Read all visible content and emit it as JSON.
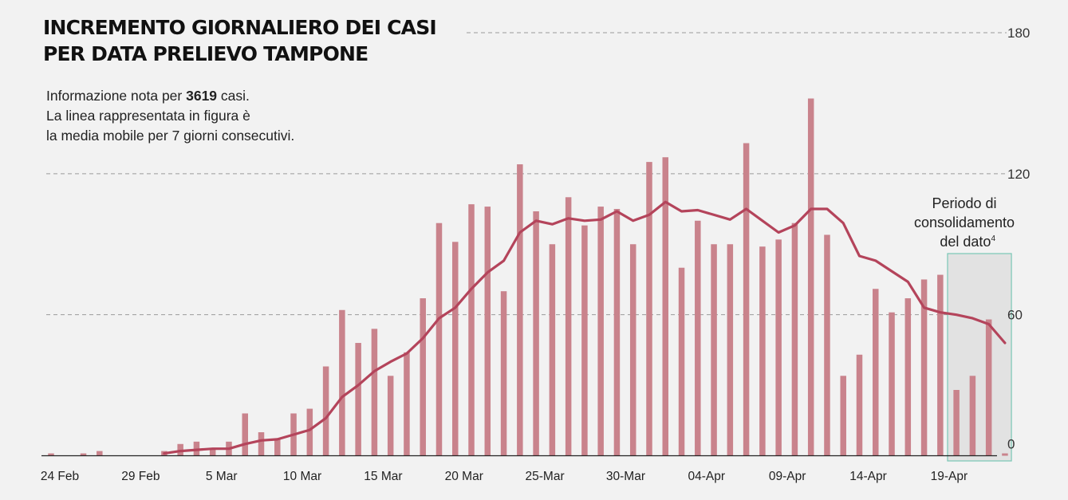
{
  "title_lines": [
    "INCREMENTO GIORNALIERO DEI CASI",
    "PER DATA PRELIEVO TAMPONE"
  ],
  "subtitle": {
    "line1_prefix": "Informazione nota per ",
    "line1_bold": "3619",
    "line1_suffix": " casi.",
    "line2": "La linea rappresentata in figura è",
    "line3": "la media mobile per 7 giorni consecutivi."
  },
  "annotation": {
    "lines": [
      "Periodo di",
      "consolidamento",
      "del dato"
    ],
    "superscript": "4"
  },
  "colors": {
    "bar": "#c9838c",
    "line": "#b4445b",
    "highlight_fill": "#e2e2e2",
    "highlight_stroke": "#79c7b6",
    "grid": "#9a9a9a",
    "background": "#f2f2f2"
  },
  "chart_data": {
    "type": "bar",
    "start_date": "24 Feb",
    "x_tick_labels": [
      "24 Feb",
      "29 Feb",
      "5 Mar",
      "10 Mar",
      "15 Mar",
      "20 Mar",
      "25-Mar",
      "30-Mar",
      "04-Apr",
      "09-Apr",
      "14-Apr",
      "19-Apr"
    ],
    "y_ticks": [
      0,
      60,
      120,
      180
    ],
    "ylim": [
      0,
      180
    ],
    "grid": true,
    "values": [
      1,
      0,
      1,
      2,
      0,
      0,
      0,
      2,
      5,
      6,
      3,
      6,
      18,
      10,
      7,
      18,
      20,
      38,
      62,
      48,
      54,
      34,
      44,
      67,
      99,
      91,
      107,
      106,
      70,
      124,
      104,
      90,
      110,
      98,
      106,
      105,
      90,
      125,
      127,
      80,
      100,
      90,
      90,
      133,
      89,
      92,
      99,
      152,
      94,
      34,
      43,
      71,
      61,
      67,
      75,
      77,
      28,
      34,
      58,
      1
    ],
    "moving_average": [
      null,
      null,
      null,
      null,
      null,
      null,
      null,
      1,
      2,
      2.5,
      3,
      3,
      5,
      6.5,
      7,
      9,
      11,
      16,
      25,
      30,
      36,
      40,
      43.5,
      50,
      58.5,
      63,
      71,
      78,
      83,
      95,
      100,
      98.5,
      101,
      100,
      100.5,
      104,
      100,
      102.5,
      108,
      104,
      104.5,
      102.5,
      100.5,
      105,
      100,
      95,
      98,
      105,
      105,
      99,
      85,
      83,
      78.5,
      74,
      63,
      61,
      60,
      58.5,
      56,
      48
    ],
    "highlight": {
      "label": "Periodo di consolidamento del dato",
      "from_index": 56,
      "to_index": 59
    }
  }
}
